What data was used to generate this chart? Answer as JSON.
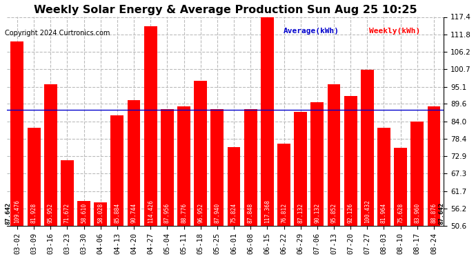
{
  "title": "Weekly Solar Energy & Average Production Sun Aug 25 10:25",
  "copyright": "Copyright 2024 Curtronics.com",
  "legend_avg": "Average(kWh)",
  "legend_weekly": "Weekly(kWh)",
  "average": 87.642,
  "categories": [
    "03-02",
    "03-09",
    "03-16",
    "03-23",
    "03-30",
    "04-06",
    "04-13",
    "04-20",
    "04-27",
    "05-04",
    "05-11",
    "05-18",
    "05-25",
    "06-01",
    "06-08",
    "06-15",
    "06-22",
    "06-29",
    "07-06",
    "07-13",
    "07-20",
    "07-27",
    "08-03",
    "08-10",
    "08-17",
    "08-24"
  ],
  "values": [
    109.476,
    81.928,
    95.952,
    71.672,
    58.61,
    58.028,
    85.884,
    90.744,
    114.426,
    87.956,
    88.776,
    96.952,
    87.94,
    75.824,
    87.848,
    117.368,
    76.812,
    87.132,
    90.132,
    95.852,
    92.126,
    100.432,
    81.964,
    75.628,
    83.96,
    88.876
  ],
  "bar_color": "#ff0000",
  "avg_line_color": "#0000cc",
  "avg_label_color": "#000000",
  "ylim_min": 50.6,
  "ylim_max": 117.4,
  "yticks": [
    50.6,
    56.2,
    61.7,
    67.3,
    72.9,
    78.4,
    84.0,
    89.6,
    95.1,
    100.7,
    106.2,
    111.8,
    117.4
  ],
  "grid_color": "#bbbbbb",
  "background_color": "#ffffff",
  "title_fontsize": 11.5,
  "tick_fontsize": 7.5,
  "bar_label_fontsize": 5.8,
  "value_label_color": "#ffffff",
  "copyright_fontsize": 7,
  "legend_fontsize": 8
}
